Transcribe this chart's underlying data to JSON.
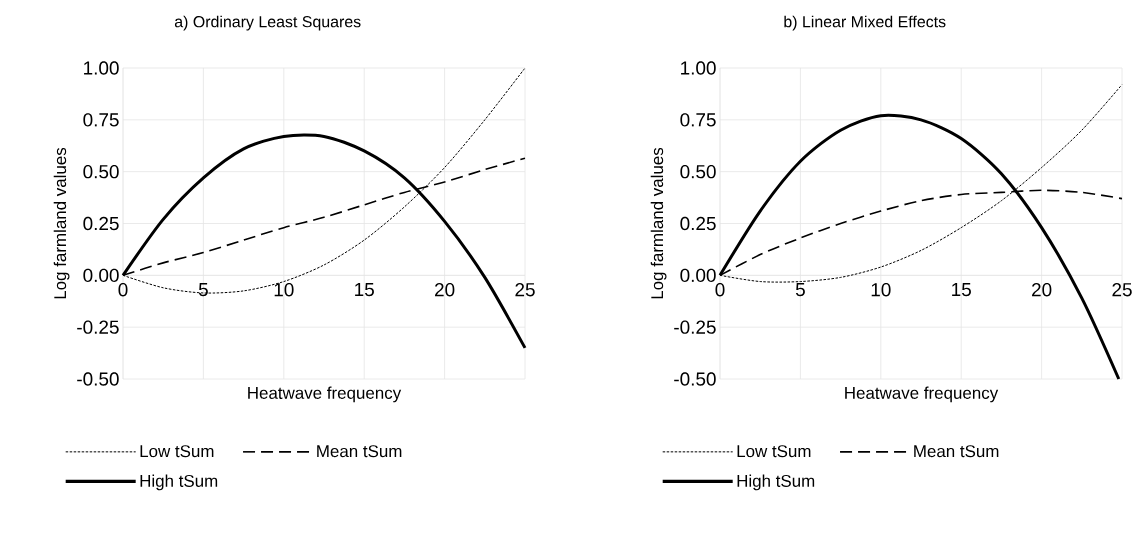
{
  "chart_data": [
    {
      "type": "line",
      "title": "a) Ordinary Least Squares",
      "xlabel": "Heatwave frequency",
      "ylabel": "Log farmland values",
      "x": [
        0,
        2.5,
        5,
        7.5,
        10,
        12.5,
        15,
        17.5,
        20,
        22.5,
        25
      ],
      "series": [
        {
          "name": "Low tSum",
          "color": "#000000",
          "line_style": "dotted",
          "values": [
            0,
            -0.06,
            -0.085,
            -0.075,
            -0.03,
            0.05,
            0.17,
            0.33,
            0.52,
            0.75,
            1.0
          ]
        },
        {
          "name": "Mean tSum",
          "color": "#000000",
          "line_style": "dashed",
          "values": [
            0,
            0.06,
            0.11,
            0.17,
            0.23,
            0.28,
            0.34,
            0.4,
            0.45,
            0.51,
            0.565
          ]
        },
        {
          "name": "High tSum",
          "color": "#000000",
          "line_style": "solid",
          "values": [
            0,
            0.27,
            0.47,
            0.61,
            0.67,
            0.67,
            0.6,
            0.47,
            0.26,
            -0.01,
            -0.35
          ]
        }
      ],
      "xlim": [
        0,
        25
      ],
      "ylim": [
        -0.5,
        1.0
      ],
      "xticks": [
        0,
        5,
        10,
        15,
        20,
        25
      ],
      "yticks": [
        {
          "value": -0.5,
          "label": "-0.50"
        },
        {
          "value": -0.25,
          "label": "-0.25"
        },
        {
          "value": 0,
          "label": "0.00"
        },
        {
          "value": 0.25,
          "label": "0.25"
        },
        {
          "value": 0.5,
          "label": "0.50"
        },
        {
          "value": 0.75,
          "label": "0.75"
        },
        {
          "value": 1.0,
          "label": "1.00"
        }
      ],
      "grid": true,
      "legend": "bottom"
    },
    {
      "type": "line",
      "title": "b) Linear Mixed Effects",
      "xlabel": "Heatwave frequency",
      "ylabel": "Log farmland values",
      "x": [
        0,
        2.5,
        5,
        7.5,
        10,
        12.5,
        15,
        17.5,
        20,
        22.5,
        25
      ],
      "series": [
        {
          "name": "Low tSum",
          "color": "#000000",
          "line_style": "dotted",
          "values": [
            0,
            -0.03,
            -0.03,
            -0.01,
            0.04,
            0.12,
            0.23,
            0.36,
            0.52,
            0.7,
            0.92
          ]
        },
        {
          "name": "Mean tSum",
          "color": "#000000",
          "line_style": "dashed",
          "values": [
            0,
            0.1,
            0.18,
            0.25,
            0.31,
            0.36,
            0.39,
            0.4,
            0.41,
            0.4,
            0.37
          ]
        },
        {
          "name": "High tSum",
          "color": "#000000",
          "line_style": "solid",
          "x": [
            0,
            2.5,
            5,
            7.5,
            10,
            12.5,
            15,
            17.5,
            20,
            22.5,
            24.8
          ],
          "values": [
            0,
            0.31,
            0.55,
            0.7,
            0.77,
            0.75,
            0.66,
            0.49,
            0.23,
            -0.11,
            -0.5
          ]
        }
      ],
      "xlim": [
        0,
        25
      ],
      "ylim": [
        -0.5,
        1.0
      ],
      "xticks": [
        0,
        5,
        10,
        15,
        20,
        25
      ],
      "yticks": [
        {
          "value": -0.5,
          "label": "-0.50"
        },
        {
          "value": -0.25,
          "label": "-0.25"
        },
        {
          "value": 0,
          "label": "0.00"
        },
        {
          "value": 0.25,
          "label": "0.25"
        },
        {
          "value": 0.5,
          "label": "0.50"
        },
        {
          "value": 0.75,
          "label": "0.75"
        },
        {
          "value": 1.0,
          "label": "1.00"
        }
      ],
      "grid": true,
      "legend": "bottom"
    }
  ]
}
